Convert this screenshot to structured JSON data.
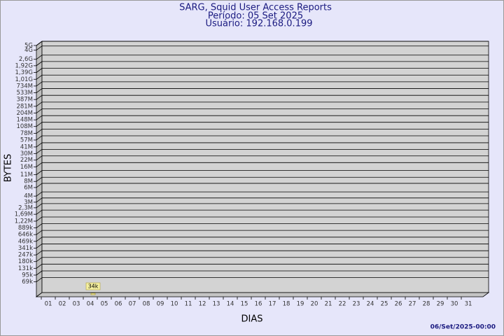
{
  "chart_data": {
    "type": "bar",
    "title": "SARG, Squid User Access Reports",
    "subtitle": "Período: 05 Set 2025",
    "subtitle2": "Usuário: 192.168.0.199",
    "ylabel": "BYTES",
    "xlabel": "DIAS",
    "footer": "06/Set/2025-00:00",
    "categories": [
      "01",
      "02",
      "03",
      "04",
      "05",
      "06",
      "07",
      "08",
      "09",
      "10",
      "11",
      "12",
      "13",
      "14",
      "15",
      "16",
      "17",
      "18",
      "19",
      "20",
      "21",
      "22",
      "23",
      "24",
      "25",
      "26",
      "27",
      "28",
      "29",
      "30",
      "31"
    ],
    "values": [
      null,
      null,
      null,
      null,
      34000,
      null,
      null,
      null,
      null,
      null,
      null,
      null,
      null,
      null,
      null,
      null,
      null,
      null,
      null,
      null,
      null,
      null,
      null,
      null,
      null,
      null,
      null,
      null,
      null,
      null,
      null
    ],
    "value_labels": [
      null,
      null,
      null,
      null,
      "34k",
      null,
      null,
      null,
      null,
      null,
      null,
      null,
      null,
      null,
      null,
      null,
      null,
      null,
      null,
      null,
      null,
      null,
      null,
      null,
      null,
      null,
      null,
      null,
      null,
      null,
      null
    ],
    "color": "#f5f0a0",
    "log_scale": true,
    "grid": true,
    "ylim": [
      34000,
      5000000000
    ],
    "yticks": [
      {
        "value": 69000,
        "label": "69k"
      },
      {
        "value": 95000,
        "label": "95k"
      },
      {
        "value": 131000,
        "label": "131k"
      },
      {
        "value": 180000,
        "label": "180k"
      },
      {
        "value": 247000,
        "label": "247k"
      },
      {
        "value": 341000,
        "label": "341k"
      },
      {
        "value": 469000,
        "label": "469k"
      },
      {
        "value": 646000,
        "label": "646k"
      },
      {
        "value": 889000,
        "label": "889k"
      },
      {
        "value": 1220000,
        "label": "1,22M"
      },
      {
        "value": 1690000,
        "label": "1,69M"
      },
      {
        "value": 2300000,
        "label": "2,3M"
      },
      {
        "value": 3000000,
        "label": "3M"
      },
      {
        "value": 4000000,
        "label": "4M"
      },
      {
        "value": 6000000,
        "label": "6M"
      },
      {
        "value": 8000000,
        "label": "8M"
      },
      {
        "value": 11000000,
        "label": "11M"
      },
      {
        "value": 16000000,
        "label": "16M"
      },
      {
        "value": 22000000,
        "label": "22M"
      },
      {
        "value": 30000000,
        "label": "30M"
      },
      {
        "value": 41000000,
        "label": "41M"
      },
      {
        "value": 57000000,
        "label": "57M"
      },
      {
        "value": 78000000,
        "label": "78M"
      },
      {
        "value": 108000000,
        "label": "108M"
      },
      {
        "value": 148000000,
        "label": "148M"
      },
      {
        "value": 204000000,
        "label": "204M"
      },
      {
        "value": 281000000,
        "label": "281M"
      },
      {
        "value": 387000000,
        "label": "387M"
      },
      {
        "value": 533000000,
        "label": "533M"
      },
      {
        "value": 734000000,
        "label": "734M"
      },
      {
        "value": 1010000000,
        "label": "1,01G"
      },
      {
        "value": 1390000000,
        "label": "1,39G"
      },
      {
        "value": 1920000000,
        "label": "1,92G"
      },
      {
        "value": 2600000000,
        "label": "2,6G"
      },
      {
        "value": 4000000000,
        "label": "4G"
      },
      {
        "value": 5000000000,
        "label": "5G"
      }
    ]
  }
}
